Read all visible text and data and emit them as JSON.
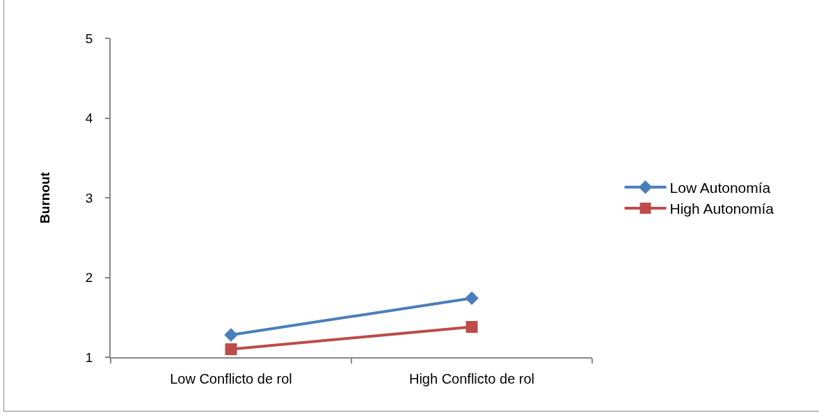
{
  "chart_data": {
    "type": "line",
    "ylabel": "Burnout",
    "categories": [
      "Low Conflicto de rol",
      "High Conflicto de rol"
    ],
    "series": [
      {
        "name": "Low Autonomía",
        "color": "#4a7ebb",
        "values": [
          1.28,
          1.74
        ],
        "marker": "diamond"
      },
      {
        "name": "High Autonomía",
        "color": "#be4b48",
        "values": [
          1.1,
          1.38
        ],
        "marker": "square"
      }
    ],
    "ylim": [
      1,
      5
    ],
    "yticks": [
      1,
      2,
      3,
      4,
      5
    ],
    "legend": "right",
    "line_style": "solid"
  }
}
